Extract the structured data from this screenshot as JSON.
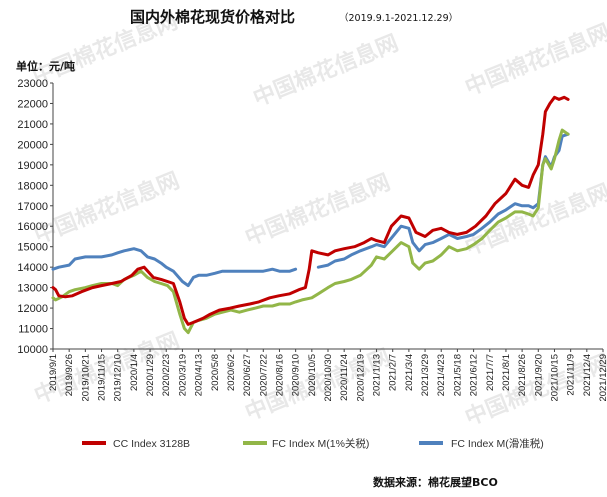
{
  "watermark_text": "中国棉花信息网",
  "watermark_url": "www.cottonchina.org.cn",
  "source_text": "数据来源：棉花展望BCO",
  "chart_data": {
    "type": "line",
    "title": "国内外棉花现货价格对比",
    "subtitle": "（2019.9.1-2021.12.29）",
    "ylabel": "单位：元/吨",
    "xlabel": "",
    "ylim": [
      10000,
      23000
    ],
    "yticks": [
      10000,
      11000,
      12000,
      13000,
      14000,
      15000,
      16000,
      17000,
      18000,
      19000,
      20000,
      21000,
      22000,
      23000
    ],
    "xlim": [
      "2019-09-01",
      "2021-12-29"
    ],
    "xticks": [
      "2019/9/1",
      "2019/9/26",
      "2019/10/21",
      "2019/11/15",
      "2019/12/10",
      "2020/1/4",
      "2020/1/29",
      "2020/2/23",
      "2020/3/19",
      "2020/4/13",
      "2020/5/8",
      "2020/6/2",
      "2020/6/27",
      "2020/7/22",
      "2020/8/16",
      "2020/9/10",
      "2020/10/5",
      "2020/10/30",
      "2020/11/24",
      "2020/12/19",
      "2021/1/13",
      "2021/2/7",
      "2021/3/4",
      "2021/3/29",
      "2021/4/23",
      "2021/5/18",
      "2021/6/12",
      "2021/7/7",
      "2021/8/1",
      "2021/8/26",
      "2021/9/20",
      "2021/10/15",
      "2021/11/9",
      "2021/12/4",
      "2021/12/29"
    ],
    "grid": false,
    "legend_position": "bottom",
    "series": [
      {
        "name": "CC Index 3128B",
        "color": "#c00000",
        "points": [
          [
            "2019-09-01",
            13000
          ],
          [
            "2019-09-05",
            12900
          ],
          [
            "2019-09-10",
            12600
          ],
          [
            "2019-09-20",
            12550
          ],
          [
            "2019-10-01",
            12600
          ],
          [
            "2019-10-15",
            12800
          ],
          [
            "2019-11-01",
            13000
          ],
          [
            "2019-11-15",
            13100
          ],
          [
            "2019-12-01",
            13200
          ],
          [
            "2019-12-15",
            13300
          ],
          [
            "2020-01-01",
            13600
          ],
          [
            "2020-01-10",
            13900
          ],
          [
            "2020-01-20",
            14000
          ],
          [
            "2020-02-03",
            13500
          ],
          [
            "2020-02-15",
            13400
          ],
          [
            "2020-02-25",
            13300
          ],
          [
            "2020-03-05",
            13200
          ],
          [
            "2020-03-15",
            12300
          ],
          [
            "2020-03-22",
            11500
          ],
          [
            "2020-03-28",
            11200
          ],
          [
            "2020-04-05",
            11300
          ],
          [
            "2020-04-20",
            11500
          ],
          [
            "2020-05-01",
            11700
          ],
          [
            "2020-05-15",
            11900
          ],
          [
            "2020-06-01",
            12000
          ],
          [
            "2020-06-15",
            12100
          ],
          [
            "2020-07-01",
            12200
          ],
          [
            "2020-07-15",
            12300
          ],
          [
            "2020-08-01",
            12500
          ],
          [
            "2020-08-15",
            12600
          ],
          [
            "2020-09-01",
            12700
          ],
          [
            "2020-09-15",
            12900
          ],
          [
            "2020-09-25",
            13000
          ],
          [
            "2020-10-01",
            13900
          ],
          [
            "2020-10-05",
            14800
          ],
          [
            "2020-10-15",
            14700
          ],
          [
            "2020-10-30",
            14600
          ],
          [
            "2020-11-10",
            14800
          ],
          [
            "2020-11-24",
            14900
          ],
          [
            "2020-12-10",
            15000
          ],
          [
            "2020-12-25",
            15200
          ],
          [
            "2021-01-05",
            15400
          ],
          [
            "2021-01-13",
            15300
          ],
          [
            "2021-01-25",
            15200
          ],
          [
            "2021-02-05",
            16000
          ],
          [
            "2021-02-20",
            16500
          ],
          [
            "2021-03-04",
            16400
          ],
          [
            "2021-03-15",
            15700
          ],
          [
            "2021-03-29",
            15500
          ],
          [
            "2021-04-10",
            15800
          ],
          [
            "2021-04-23",
            15900
          ],
          [
            "2021-05-05",
            15700
          ],
          [
            "2021-05-18",
            15600
          ],
          [
            "2021-06-01",
            15700
          ],
          [
            "2021-06-15",
            16000
          ],
          [
            "2021-07-01",
            16500
          ],
          [
            "2021-07-15",
            17100
          ],
          [
            "2021-08-01",
            17600
          ],
          [
            "2021-08-15",
            18300
          ],
          [
            "2021-08-26",
            18000
          ],
          [
            "2021-09-05",
            17900
          ],
          [
            "2021-09-12",
            18500
          ],
          [
            "2021-09-20",
            19000
          ],
          [
            "2021-09-27",
            20500
          ],
          [
            "2021-10-01",
            21600
          ],
          [
            "2021-10-08",
            22000
          ],
          [
            "2021-10-15",
            22300
          ],
          [
            "2021-10-22",
            22200
          ],
          [
            "2021-10-30",
            22300
          ],
          [
            "2021-11-05",
            22200
          ]
        ]
      },
      {
        "name": "FC Index M(1%关税)",
        "color": "#92b648",
        "points": [
          [
            "2019-09-01",
            12500
          ],
          [
            "2019-09-05",
            12400
          ],
          [
            "2019-09-15",
            12550
          ],
          [
            "2019-09-26",
            12800
          ],
          [
            "2019-10-05",
            12900
          ],
          [
            "2019-10-21",
            13000
          ],
          [
            "2019-11-01",
            13100
          ],
          [
            "2019-11-15",
            13200
          ],
          [
            "2019-12-01",
            13200
          ],
          [
            "2019-12-10",
            13100
          ],
          [
            "2019-12-20",
            13400
          ],
          [
            "2020-01-04",
            13600
          ],
          [
            "2020-01-15",
            13800
          ],
          [
            "2020-01-25",
            13500
          ],
          [
            "2020-02-05",
            13300
          ],
          [
            "2020-02-15",
            13200
          ],
          [
            "2020-02-25",
            13100
          ],
          [
            "2020-03-05",
            12800
          ],
          [
            "2020-03-15",
            11700
          ],
          [
            "2020-03-22",
            11000
          ],
          [
            "2020-03-28",
            10800
          ],
          [
            "2020-04-05",
            11300
          ],
          [
            "2020-04-13",
            11400
          ],
          [
            "2020-04-25",
            11500
          ],
          [
            "2020-05-08",
            11700
          ],
          [
            "2020-05-20",
            11800
          ],
          [
            "2020-06-02",
            11900
          ],
          [
            "2020-06-15",
            11800
          ],
          [
            "2020-06-27",
            11900
          ],
          [
            "2020-07-10",
            12000
          ],
          [
            "2020-07-22",
            12100
          ],
          [
            "2020-08-05",
            12100
          ],
          [
            "2020-08-16",
            12200
          ],
          [
            "2020-09-01",
            12200
          ],
          [
            "2020-09-10",
            12300
          ],
          [
            "2020-09-20",
            12400
          ],
          [
            "2020-10-05",
            12500
          ],
          [
            "2020-10-15",
            12700
          ],
          [
            "2020-10-30",
            13000
          ],
          [
            "2020-11-10",
            13200
          ],
          [
            "2020-11-24",
            13300
          ],
          [
            "2020-12-05",
            13400
          ],
          [
            "2020-12-19",
            13600
          ],
          [
            "2021-01-05",
            14100
          ],
          [
            "2021-01-13",
            14500
          ],
          [
            "2021-01-25",
            14400
          ],
          [
            "2021-02-07",
            14800
          ],
          [
            "2021-02-20",
            15200
          ],
          [
            "2021-03-04",
            15000
          ],
          [
            "2021-03-10",
            14200
          ],
          [
            "2021-03-20",
            13900
          ],
          [
            "2021-03-29",
            14200
          ],
          [
            "2021-04-10",
            14300
          ],
          [
            "2021-04-23",
            14600
          ],
          [
            "2021-05-05",
            15000
          ],
          [
            "2021-05-18",
            14800
          ],
          [
            "2021-06-01",
            14900
          ],
          [
            "2021-06-12",
            15100
          ],
          [
            "2021-06-25",
            15400
          ],
          [
            "2021-07-07",
            15800
          ],
          [
            "2021-07-20",
            16200
          ],
          [
            "2021-08-01",
            16400
          ],
          [
            "2021-08-15",
            16700
          ],
          [
            "2021-08-26",
            16700
          ],
          [
            "2021-09-05",
            16600
          ],
          [
            "2021-09-12",
            16500
          ],
          [
            "2021-09-20",
            16900
          ],
          [
            "2021-09-27",
            19000
          ],
          [
            "2021-10-01",
            19300
          ],
          [
            "2021-10-10",
            18800
          ],
          [
            "2021-10-15",
            19300
          ],
          [
            "2021-10-22",
            20200
          ],
          [
            "2021-10-27",
            20700
          ],
          [
            "2021-11-05",
            20500
          ]
        ]
      },
      {
        "name": "FC Index M(滑准税)",
        "color": "#4f81bd",
        "points": [
          [
            "2019-09-01",
            13900
          ],
          [
            "2019-09-10",
            14000
          ],
          [
            "2019-09-26",
            14100
          ],
          [
            "2019-10-05",
            14400
          ],
          [
            "2019-10-21",
            14500
          ],
          [
            "2019-11-05",
            14500
          ],
          [
            "2019-11-15",
            14500
          ],
          [
            "2019-12-01",
            14600
          ],
          [
            "2019-12-10",
            14700
          ],
          [
            "2019-12-20",
            14800
          ],
          [
            "2020-01-04",
            14900
          ],
          [
            "2020-01-15",
            14800
          ],
          [
            "2020-01-25",
            14500
          ],
          [
            "2020-02-05",
            14400
          ],
          [
            "2020-02-15",
            14200
          ],
          [
            "2020-02-23",
            14000
          ],
          [
            "2020-03-05",
            13800
          ],
          [
            "2020-03-19",
            13300
          ],
          [
            "2020-03-28",
            13100
          ],
          [
            "2020-04-05",
            13500
          ],
          [
            "2020-04-13",
            13600
          ],
          [
            "2020-04-25",
            13600
          ],
          [
            "2020-05-08",
            13700
          ],
          [
            "2020-05-20",
            13800
          ],
          [
            "2020-06-02",
            13800
          ],
          [
            "2020-06-15",
            13800
          ],
          [
            "2020-06-27",
            13800
          ],
          [
            "2020-07-10",
            13800
          ],
          [
            "2020-07-22",
            13800
          ],
          [
            "2020-08-05",
            13900
          ],
          [
            "2020-08-16",
            13800
          ],
          [
            "2020-09-01",
            13800
          ],
          [
            "2020-09-10",
            13900
          ]
        ],
        "segments2": [
          [
            "2020-10-15",
            14000
          ],
          [
            "2020-10-30",
            14100
          ],
          [
            "2020-11-10",
            14300
          ],
          [
            "2020-11-24",
            14400
          ],
          [
            "2020-12-05",
            14600
          ],
          [
            "2020-12-19",
            14800
          ],
          [
            "2021-01-05",
            15000
          ],
          [
            "2021-01-13",
            15100
          ],
          [
            "2021-01-25",
            15000
          ],
          [
            "2021-02-07",
            15500
          ],
          [
            "2021-02-20",
            16000
          ],
          [
            "2021-03-04",
            15900
          ],
          [
            "2021-03-10",
            15200
          ],
          [
            "2021-03-20",
            14800
          ],
          [
            "2021-03-29",
            15100
          ],
          [
            "2021-04-10",
            15200
          ],
          [
            "2021-04-23",
            15400
          ],
          [
            "2021-05-05",
            15600
          ],
          [
            "2021-05-18",
            15400
          ],
          [
            "2021-06-01",
            15500
          ],
          [
            "2021-06-12",
            15600
          ],
          [
            "2021-06-25",
            15900
          ],
          [
            "2021-07-07",
            16200
          ],
          [
            "2021-07-20",
            16600
          ],
          [
            "2021-08-01",
            16800
          ],
          [
            "2021-08-15",
            17100
          ],
          [
            "2021-08-26",
            17000
          ],
          [
            "2021-09-05",
            17000
          ],
          [
            "2021-09-12",
            16900
          ],
          [
            "2021-09-20",
            17100
          ],
          [
            "2021-09-27",
            19000
          ],
          [
            "2021-10-01",
            19400
          ],
          [
            "2021-10-10",
            18900
          ],
          [
            "2021-10-15",
            19400
          ],
          [
            "2021-10-22",
            19700
          ],
          [
            "2021-10-27",
            20400
          ],
          [
            "2021-11-05",
            20500
          ]
        ]
      }
    ]
  }
}
